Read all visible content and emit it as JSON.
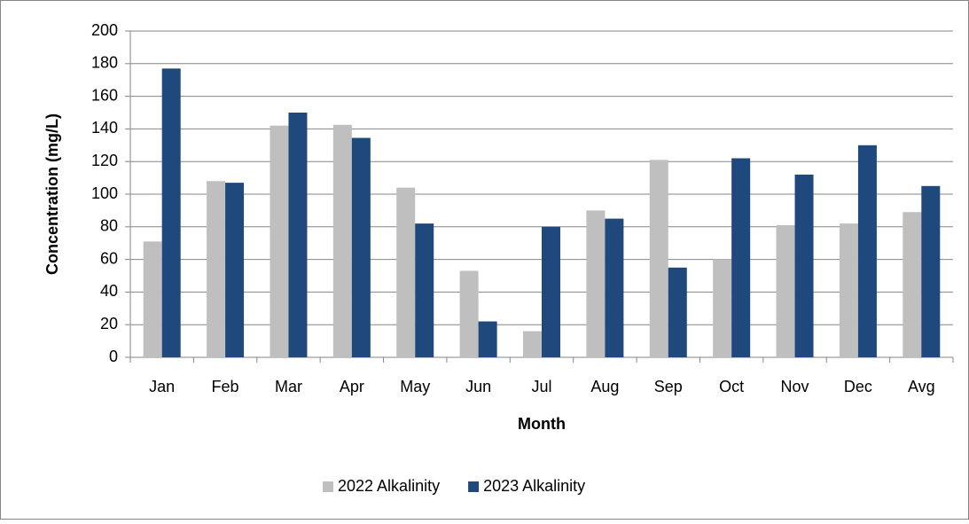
{
  "chart_data": {
    "type": "bar",
    "xlabel": "Month",
    "ylabel": "Concentration (mg/L)",
    "categories": [
      "Jan",
      "Feb",
      "Mar",
      "Apr",
      "May",
      "Jun",
      "Jul",
      "Aug",
      "Sep",
      "Oct",
      "Nov",
      "Dec",
      "Avg"
    ],
    "series": [
      {
        "name": "2022 Alkalinity",
        "color": "#bfbfbf",
        "values": [
          71,
          108,
          142,
          142.5,
          104,
          53,
          16,
          90,
          121,
          60,
          81,
          82,
          89
        ]
      },
      {
        "name": "2023 Alkalinity",
        "color": "#1f497d",
        "values": [
          177,
          107,
          150,
          134.5,
          82,
          22,
          80,
          85,
          55,
          122,
          112,
          130,
          105
        ]
      }
    ],
    "ylim": [
      0,
      200
    ],
    "yticks": [
      0,
      20,
      40,
      60,
      80,
      100,
      120,
      140,
      160,
      180,
      200
    ],
    "grid": true,
    "legend": "bottom"
  }
}
